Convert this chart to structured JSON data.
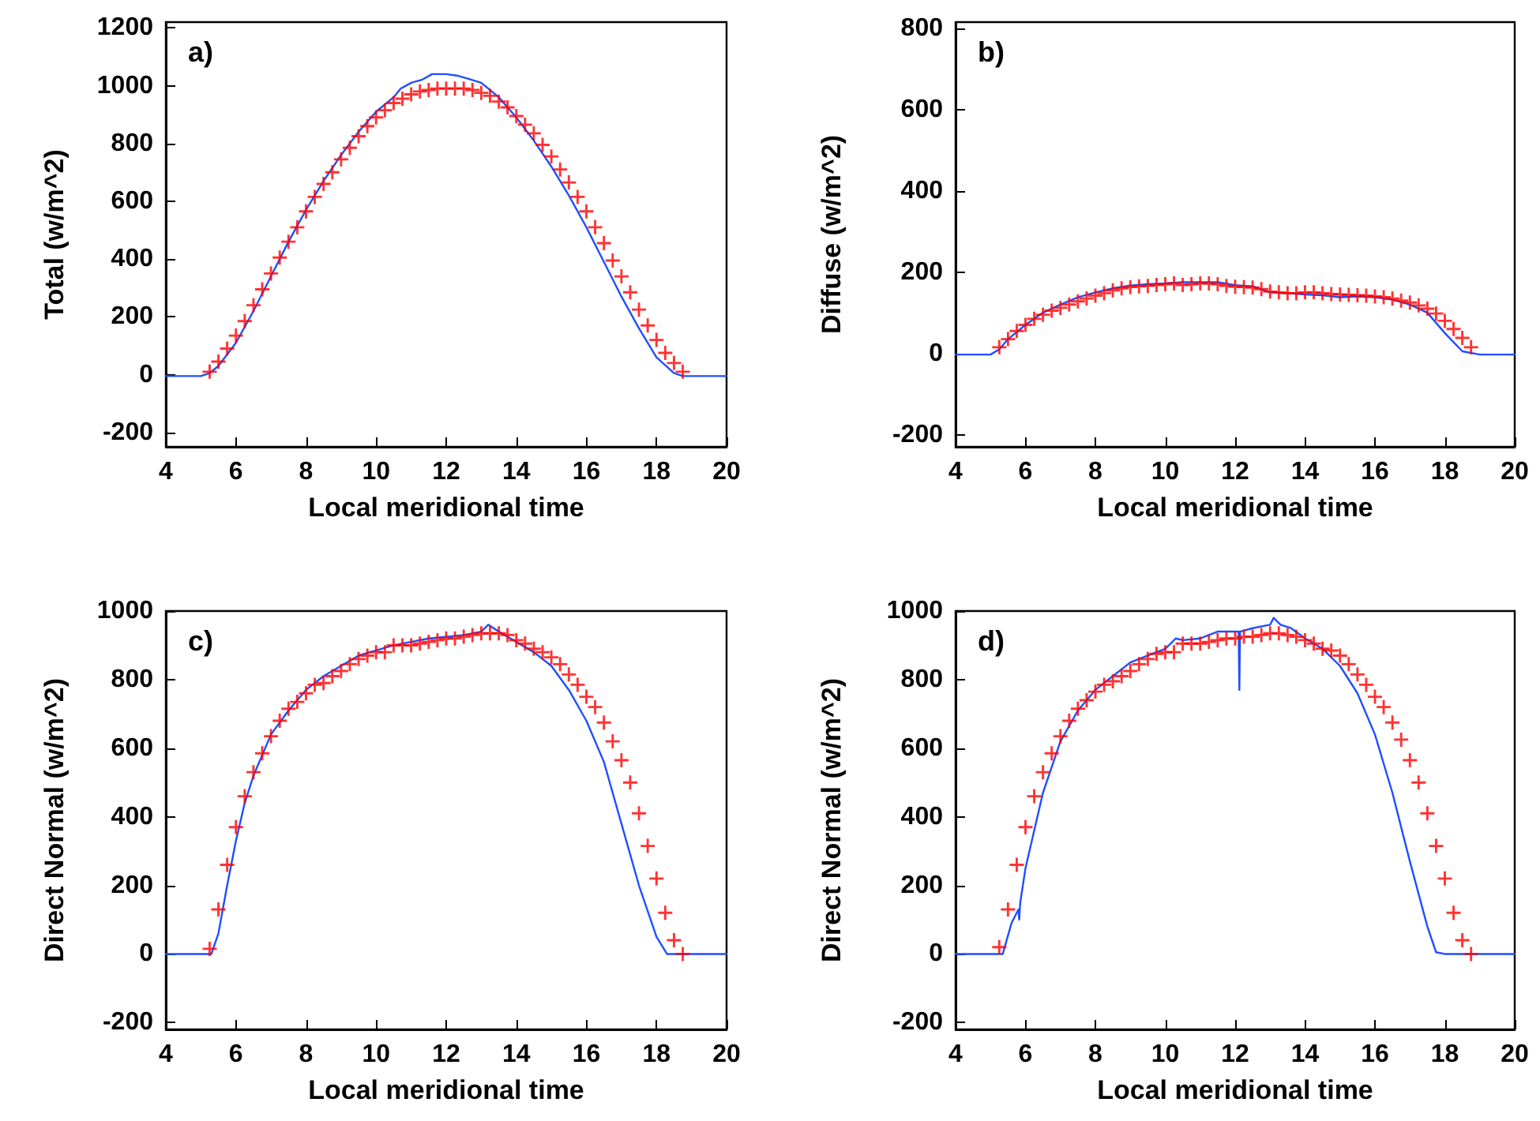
{
  "chart_data": [
    {
      "type": "line",
      "xlabel": "Local meridional time",
      "ylabel": "Total (w/m^2)",
      "annotations": [
        "a)"
      ],
      "xlim": [
        4,
        20
      ],
      "xticks": [
        4,
        6,
        8,
        10,
        12,
        14,
        16,
        18,
        20
      ],
      "ylim": [
        -250,
        1220
      ],
      "yticks": [
        -200,
        0,
        200,
        400,
        600,
        800,
        1000,
        1200
      ],
      "series": [
        {
          "type": "line",
          "color": "#1f4fff",
          "marker": "none",
          "x": [
            4,
            5,
            5.25,
            5.5,
            6,
            6.5,
            7,
            7.5,
            8,
            8.5,
            9,
            9.5,
            10,
            10.5,
            10.7,
            11,
            11.3,
            11.6,
            12,
            12.3,
            12.6,
            13,
            13.5,
            14,
            14.5,
            15,
            15.5,
            16,
            16.5,
            17,
            17.5,
            18,
            18.5,
            18.75,
            20
          ],
          "values": [
            -5,
            -5,
            5,
            30,
            110,
            220,
            340,
            460,
            570,
            670,
            760,
            840,
            910,
            960,
            990,
            1010,
            1020,
            1040,
            1040,
            1035,
            1025,
            1010,
            960,
            890,
            810,
            720,
            620,
            510,
            390,
            270,
            160,
            60,
            5,
            -5,
            -5
          ]
        },
        {
          "type": "scatter",
          "color": "#ff0000",
          "marker": "cross",
          "x": [
            5.25,
            5.5,
            5.75,
            6,
            6.25,
            6.5,
            6.75,
            7,
            7.25,
            7.5,
            7.75,
            8,
            8.25,
            8.5,
            8.75,
            9,
            9.25,
            9.5,
            9.75,
            10,
            10.25,
            10.5,
            10.75,
            11,
            11.25,
            11.5,
            11.75,
            12,
            12.25,
            12.5,
            12.75,
            13,
            13.25,
            13.5,
            13.75,
            14,
            14.25,
            14.5,
            14.75,
            15,
            15.25,
            15.5,
            15.75,
            16,
            16.25,
            16.5,
            16.75,
            17,
            17.25,
            17.5,
            17.75,
            18,
            18.25,
            18.5,
            18.75
          ],
          "values": [
            10,
            45,
            90,
            135,
            185,
            240,
            295,
            350,
            405,
            460,
            510,
            565,
            615,
            660,
            700,
            745,
            785,
            825,
            860,
            890,
            915,
            940,
            955,
            970,
            980,
            985,
            990,
            990,
            990,
            990,
            985,
            975,
            965,
            945,
            925,
            895,
            865,
            835,
            795,
            755,
            710,
            665,
            615,
            565,
            510,
            455,
            395,
            340,
            285,
            225,
            170,
            120,
            75,
            40,
            10
          ]
        }
      ]
    },
    {
      "type": "line",
      "xlabel": "Local meridional time",
      "ylabel": "Diffuse (w/m^2)",
      "annotations": [
        "b)"
      ],
      "xlim": [
        4,
        20
      ],
      "xticks": [
        4,
        6,
        8,
        10,
        12,
        14,
        16,
        18,
        20
      ],
      "ylim": [
        -230,
        815
      ],
      "yticks": [
        -200,
        0,
        200,
        400,
        600,
        800
      ],
      "series": [
        {
          "type": "line",
          "color": "#1f4fff",
          "marker": "none",
          "x": [
            4,
            5,
            5.25,
            5.5,
            6,
            6.5,
            7,
            7.5,
            8,
            8.5,
            9,
            9.5,
            10,
            10.5,
            11,
            11.5,
            12,
            12.5,
            13,
            13.5,
            14,
            14.5,
            15,
            15.5,
            16,
            16.5,
            17,
            17.5,
            18,
            18.5,
            19,
            20
          ],
          "values": [
            -3,
            -3,
            10,
            35,
            70,
            100,
            120,
            138,
            150,
            160,
            167,
            170,
            172,
            175,
            175,
            175,
            168,
            165,
            150,
            148,
            145,
            143,
            138,
            140,
            138,
            132,
            120,
            100,
            50,
            5,
            -3,
            -3
          ]
        },
        {
          "type": "scatter",
          "color": "#ff0000",
          "marker": "cross",
          "x": [
            5.25,
            5.5,
            5.75,
            6,
            6.25,
            6.5,
            6.75,
            7,
            7.25,
            7.5,
            7.75,
            8,
            8.25,
            8.5,
            8.75,
            9,
            9.25,
            9.5,
            9.75,
            10,
            10.25,
            10.5,
            10.75,
            11,
            11.25,
            11.5,
            11.75,
            12,
            12.25,
            12.5,
            12.75,
            13,
            13.25,
            13.5,
            13.75,
            14,
            14.25,
            14.5,
            14.75,
            15,
            15.25,
            15.5,
            15.75,
            16,
            16.25,
            16.5,
            16.75,
            17,
            17.25,
            17.5,
            17.75,
            18,
            18.25,
            18.5,
            18.75
          ],
          "values": [
            15,
            35,
            55,
            70,
            85,
            95,
            105,
            112,
            120,
            128,
            135,
            142,
            148,
            155,
            160,
            163,
            165,
            166,
            168,
            170,
            172,
            168,
            170,
            172,
            172,
            170,
            166,
            164,
            163,
            162,
            158,
            152,
            150,
            148,
            148,
            150,
            150,
            148,
            146,
            145,
            144,
            143,
            142,
            140,
            138,
            135,
            130,
            125,
            118,
            110,
            98,
            80,
            60,
            38,
            15
          ]
        }
      ]
    },
    {
      "type": "line",
      "xlabel": "Local meridional time",
      "ylabel": "Direct Normal (w/m^2)",
      "annotations": [
        "c)"
      ],
      "xlim": [
        4,
        20
      ],
      "xticks": [
        4,
        6,
        8,
        10,
        12,
        14,
        16,
        18,
        20
      ],
      "ylim": [
        -220,
        1000
      ],
      "yticks": [
        -200,
        0,
        200,
        400,
        600,
        800,
        1000
      ],
      "series": [
        {
          "type": "line",
          "color": "#1f4fff",
          "marker": "none",
          "x": [
            4,
            5.3,
            5.5,
            5.75,
            6,
            6.25,
            6.5,
            7,
            7.5,
            8,
            8.5,
            9,
            9.5,
            10,
            10.5,
            11,
            11.5,
            12,
            12.5,
            13,
            13.2,
            13.5,
            14,
            14.5,
            15,
            15.5,
            16,
            16.5,
            17,
            17.5,
            18,
            18.3,
            20
          ],
          "values": [
            0,
            0,
            60,
            200,
            330,
            440,
            520,
            640,
            710,
            770,
            810,
            840,
            870,
            885,
            900,
            910,
            920,
            925,
            930,
            940,
            960,
            940,
            910,
            880,
            840,
            770,
            680,
            560,
            380,
            200,
            50,
            0,
            0
          ]
        },
        {
          "type": "scatter",
          "color": "#ff0000",
          "marker": "cross",
          "x": [
            5.25,
            5.5,
            5.75,
            6,
            6.25,
            6.5,
            6.75,
            7,
            7.25,
            7.5,
            7.75,
            8,
            8.25,
            8.5,
            8.75,
            9,
            9.25,
            9.5,
            9.75,
            10,
            10.25,
            10.5,
            10.75,
            11,
            11.25,
            11.5,
            11.75,
            12,
            12.25,
            12.5,
            12.75,
            13,
            13.25,
            13.5,
            13.75,
            14,
            14.25,
            14.5,
            14.75,
            15,
            15.25,
            15.5,
            15.75,
            16,
            16.25,
            16.5,
            16.75,
            17,
            17.25,
            17.5,
            17.75,
            18,
            18.25,
            18.5,
            18.75
          ],
          "values": [
            15,
            130,
            260,
            370,
            460,
            530,
            585,
            635,
            680,
            715,
            735,
            760,
            785,
            790,
            810,
            825,
            845,
            860,
            870,
            880,
            880,
            900,
            900,
            900,
            905,
            910,
            915,
            920,
            920,
            925,
            930,
            935,
            935,
            935,
            930,
            915,
            905,
            890,
            880,
            865,
            845,
            815,
            785,
            750,
            720,
            675,
            620,
            565,
            500,
            410,
            315,
            220,
            120,
            40,
            0
          ]
        }
      ]
    },
    {
      "type": "line",
      "xlabel": "Local meridional time",
      "ylabel": "Direct Normal (w/m^2)",
      "annotations": [
        "d)"
      ],
      "xlim": [
        4,
        20
      ],
      "xticks": [
        4,
        6,
        8,
        10,
        12,
        14,
        16,
        18,
        20
      ],
      "ylim": [
        -220,
        1000
      ],
      "yticks": [
        -200,
        0,
        200,
        400,
        600,
        800,
        1000
      ],
      "series": [
        {
          "type": "line",
          "color": "#1f4fff",
          "marker": "none",
          "x": [
            4,
            5.35,
            5.6,
            5.8,
            5.82,
            5.85,
            6,
            6.5,
            7,
            7.5,
            8,
            8.5,
            9,
            9.5,
            10,
            10.3,
            10.5,
            11,
            11.5,
            12,
            12.1,
            12.12,
            12.14,
            12.5,
            13,
            13.1,
            13.3,
            13.6,
            14,
            14.5,
            15,
            15.5,
            16,
            16.5,
            17,
            17.5,
            17.75,
            18,
            20
          ],
          "values": [
            0,
            0,
            90,
            130,
            100,
            150,
            250,
            470,
            620,
            710,
            770,
            810,
            850,
            870,
            890,
            920,
            915,
            920,
            940,
            940,
            940,
            770,
            940,
            950,
            960,
            980,
            960,
            950,
            920,
            890,
            840,
            760,
            640,
            470,
            270,
            80,
            5,
            0,
            0
          ]
        },
        {
          "type": "scatter",
          "color": "#ff0000",
          "marker": "cross",
          "x": [
            5.25,
            5.5,
            5.75,
            6,
            6.25,
            6.5,
            6.75,
            7,
            7.25,
            7.5,
            7.75,
            8,
            8.25,
            8.5,
            8.75,
            9,
            9.25,
            9.5,
            9.75,
            10,
            10.25,
            10.5,
            10.75,
            11,
            11.25,
            11.5,
            11.75,
            12,
            12.25,
            12.5,
            12.75,
            13,
            13.25,
            13.5,
            13.75,
            14,
            14.25,
            14.5,
            14.75,
            15,
            15.25,
            15.5,
            15.75,
            16,
            16.25,
            16.5,
            16.75,
            17,
            17.25,
            17.5,
            17.75,
            18,
            18.25,
            18.5,
            18.75
          ],
          "values": [
            20,
            130,
            260,
            370,
            460,
            530,
            585,
            635,
            680,
            715,
            740,
            765,
            785,
            795,
            810,
            825,
            845,
            860,
            875,
            880,
            880,
            905,
            905,
            905,
            910,
            915,
            920,
            920,
            925,
            925,
            930,
            935,
            935,
            930,
            925,
            915,
            905,
            890,
            885,
            870,
            845,
            815,
            785,
            750,
            720,
            675,
            625,
            565,
            500,
            410,
            315,
            220,
            120,
            40,
            0
          ]
        }
      ]
    }
  ]
}
